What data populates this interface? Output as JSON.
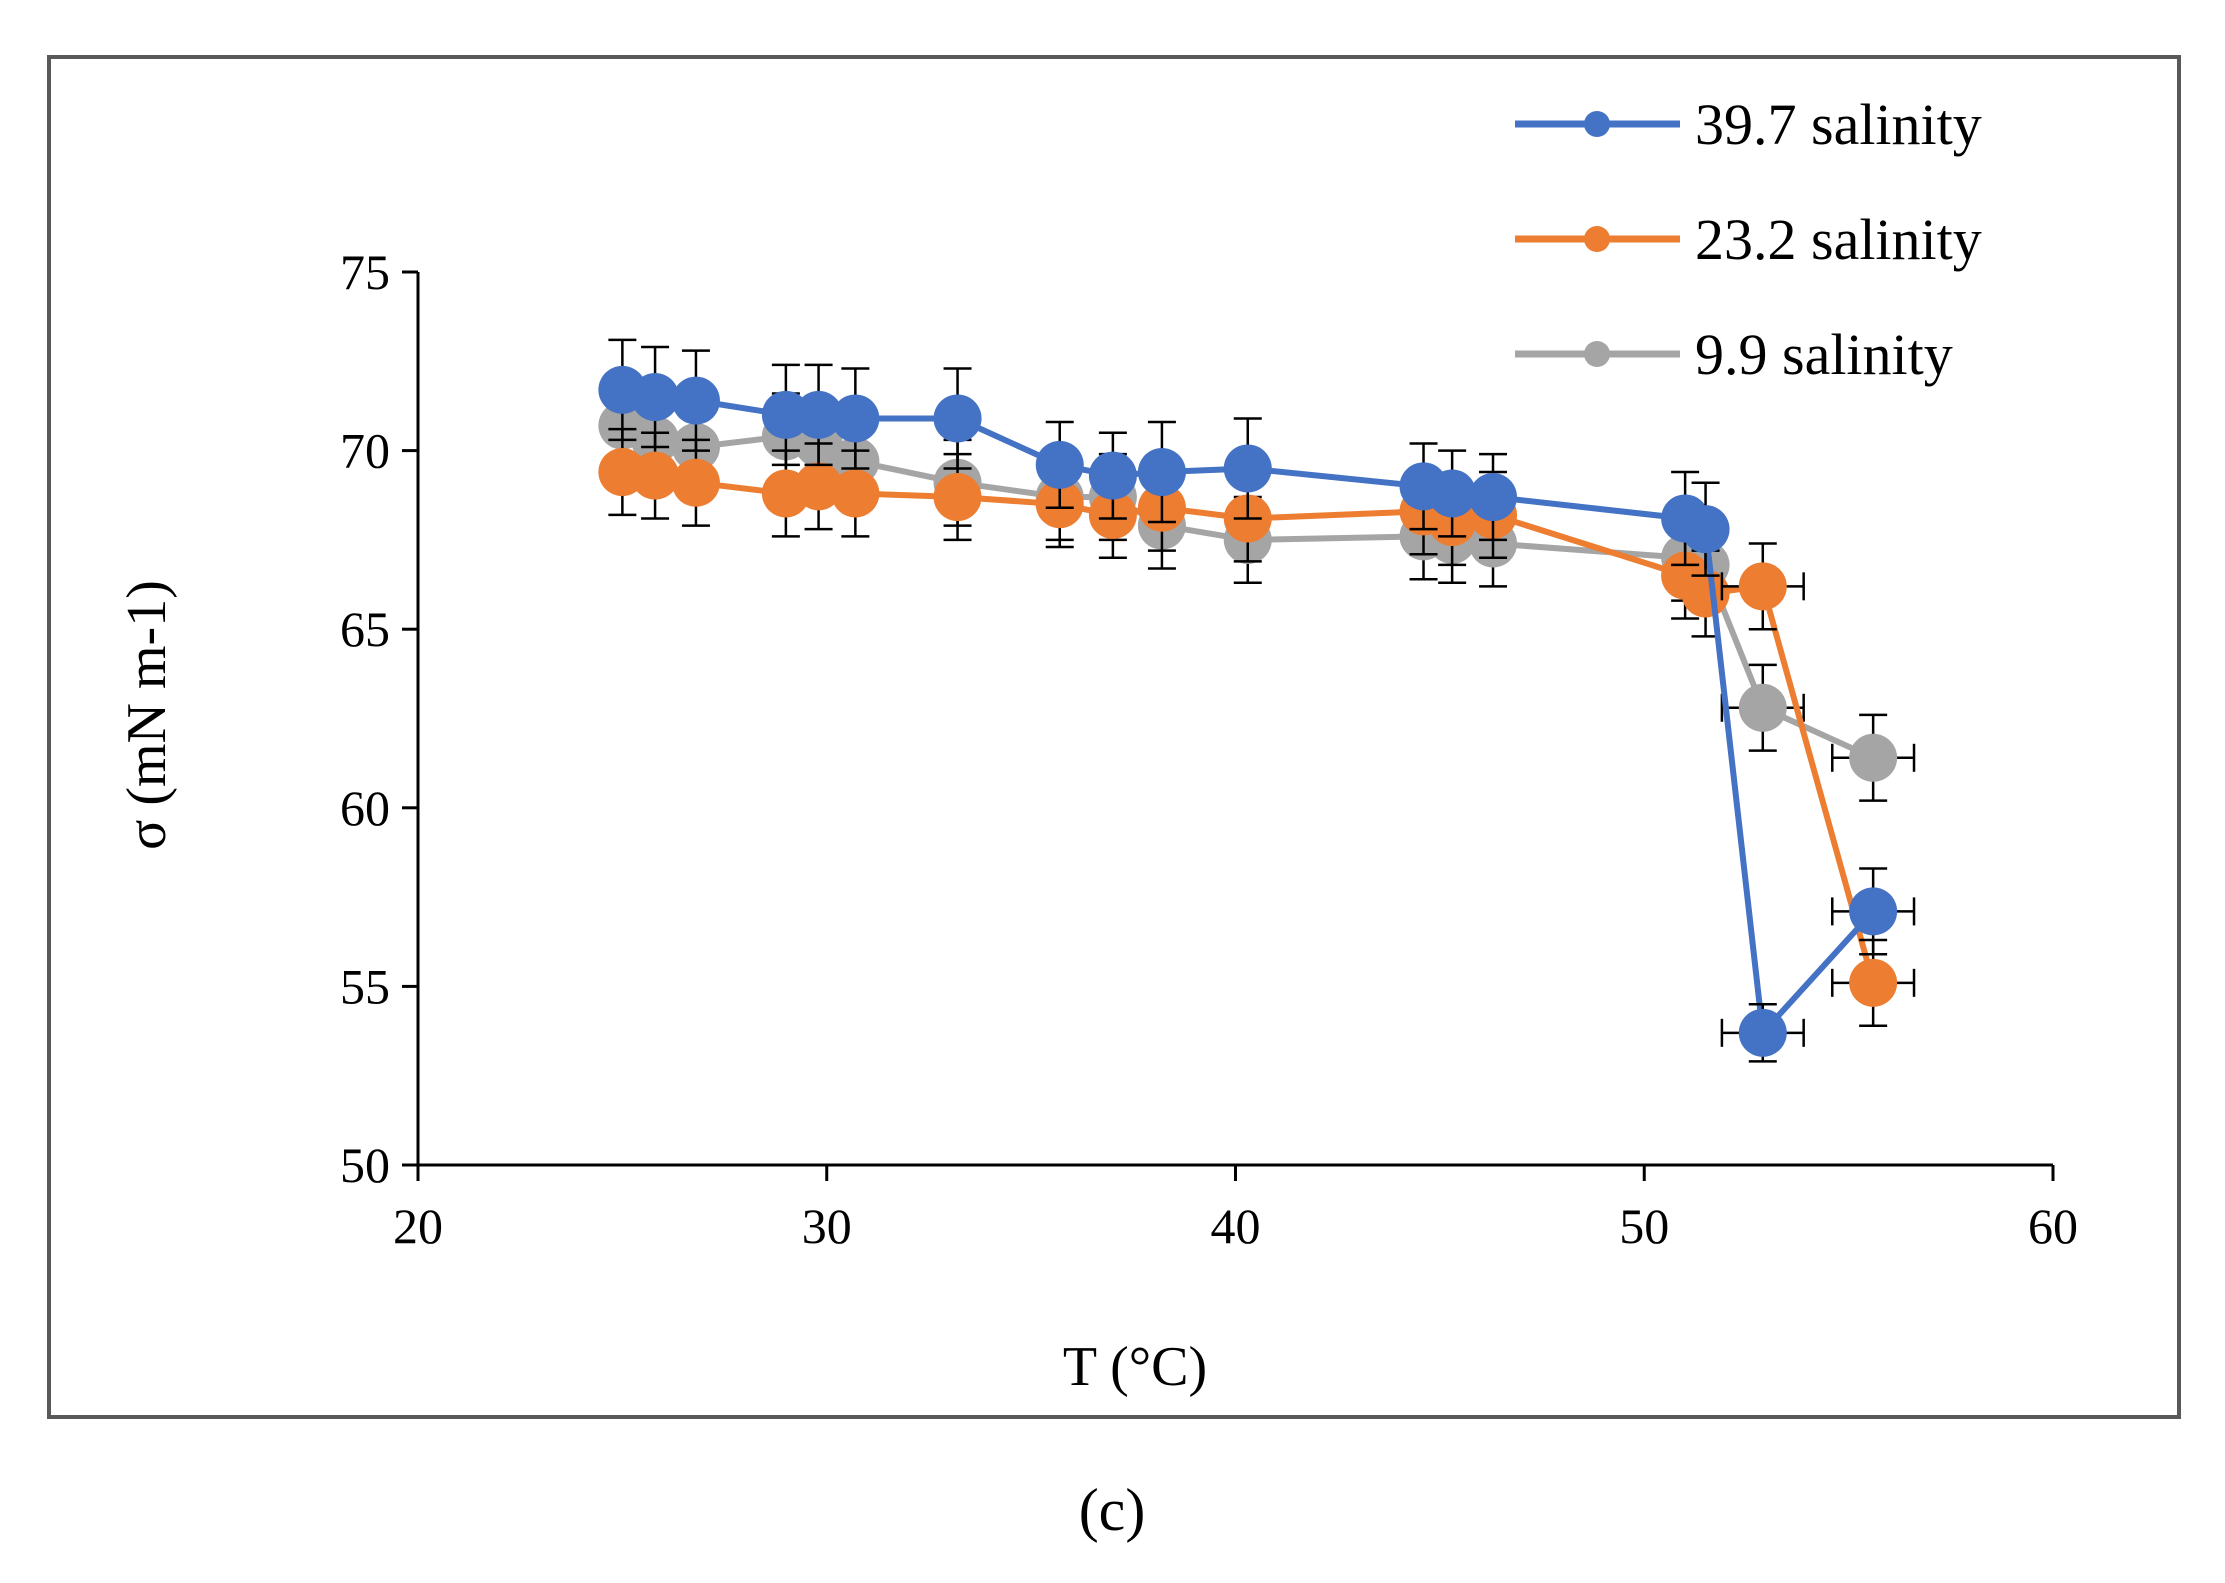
{
  "panel_label": "(c)",
  "chart_data": {
    "type": "line",
    "title": "",
    "xlabel": "T (°C)",
    "ylabel": "σ (mN m-1)",
    "xlim": [
      20,
      60
    ],
    "ylim": [
      50,
      75
    ],
    "xticks": [
      20,
      30,
      40,
      50,
      60
    ],
    "yticks": [
      50,
      55,
      60,
      65,
      70,
      75
    ],
    "grid": false,
    "legend_position": "top-right",
    "error_bars": true,
    "series": [
      {
        "name": "39.7 salinity",
        "color": "#4472C4",
        "x": [
          25.0,
          25.8,
          26.8,
          29.0,
          29.8,
          30.7,
          33.2,
          35.7,
          37.0,
          38.2,
          40.3,
          44.6,
          45.3,
          46.3,
          51.0,
          51.5,
          52.9,
          55.6
        ],
        "y": [
          71.7,
          71.5,
          71.4,
          71.0,
          71.0,
          70.9,
          70.9,
          69.6,
          69.3,
          69.4,
          69.5,
          69.0,
          68.8,
          68.7,
          68.1,
          67.8,
          53.7,
          57.1
        ],
        "yerr": [
          1.4,
          1.4,
          1.4,
          1.4,
          1.4,
          1.4,
          1.4,
          1.2,
          1.2,
          1.4,
          1.4,
          1.2,
          1.2,
          1.2,
          1.3,
          1.3,
          0.8,
          1.2
        ],
        "xerr": [
          0.3,
          0.3,
          0.3,
          0.3,
          0.3,
          0.3,
          0.3,
          0.3,
          0.3,
          0.3,
          0.3,
          0.3,
          0.3,
          0.3,
          0.3,
          0.3,
          1.0,
          1.0
        ]
      },
      {
        "name": "23.2 salinity",
        "color": "#ED7D31",
        "x": [
          25.0,
          25.8,
          26.8,
          29.0,
          29.8,
          30.7,
          33.2,
          35.7,
          37.0,
          38.2,
          40.3,
          44.6,
          45.3,
          46.3,
          51.0,
          51.5,
          52.9,
          55.6
        ],
        "y": [
          69.4,
          69.3,
          69.1,
          68.8,
          69.0,
          68.8,
          68.7,
          68.5,
          68.2,
          68.4,
          68.1,
          68.3,
          68.0,
          68.2,
          66.5,
          66.0,
          66.2,
          55.1
        ],
        "yerr": [
          1.2,
          1.2,
          1.2,
          1.2,
          1.2,
          1.2,
          1.2,
          1.2,
          1.2,
          1.2,
          1.2,
          1.2,
          1.2,
          1.2,
          1.2,
          1.2,
          1.2,
          1.2
        ],
        "xerr": [
          0.3,
          0.3,
          0.3,
          0.3,
          0.3,
          0.3,
          0.3,
          0.3,
          0.3,
          0.3,
          0.3,
          0.3,
          0.3,
          0.3,
          0.3,
          0.3,
          1.0,
          1.0
        ]
      },
      {
        "name": "9.9 salinity",
        "color": "#A5A5A5",
        "x": [
          25.0,
          25.8,
          26.8,
          29.0,
          29.8,
          30.7,
          33.2,
          35.7,
          37.0,
          38.2,
          40.3,
          44.6,
          45.3,
          46.3,
          51.0,
          51.5,
          52.9,
          55.6
        ],
        "y": [
          70.7,
          70.3,
          70.1,
          70.4,
          70.2,
          69.7,
          69.1,
          68.7,
          68.7,
          67.9,
          67.5,
          67.6,
          67.5,
          67.4,
          67.0,
          66.8,
          62.8,
          61.4
        ],
        "yerr": [
          1.2,
          1.2,
          1.2,
          1.2,
          1.2,
          1.2,
          1.2,
          1.2,
          1.2,
          1.2,
          1.2,
          1.2,
          1.2,
          1.2,
          1.2,
          1.2,
          1.2,
          1.2
        ],
        "xerr": [
          0.3,
          0.3,
          0.3,
          0.3,
          0.3,
          0.3,
          0.3,
          0.3,
          0.3,
          0.3,
          0.3,
          0.3,
          0.3,
          0.3,
          0.3,
          0.3,
          1.0,
          1.0
        ]
      }
    ]
  }
}
